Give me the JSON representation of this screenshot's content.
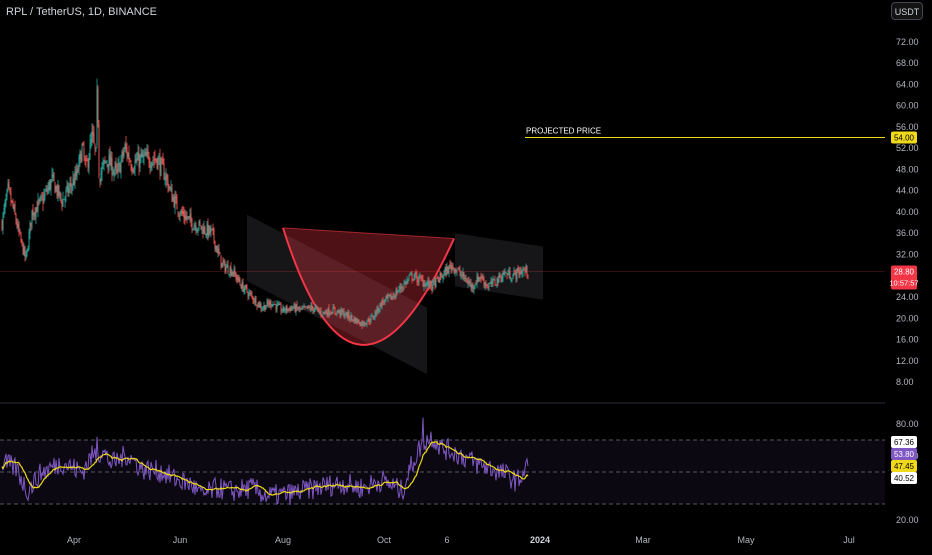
{
  "header": {
    "symbol_title": "RPL / TetherUS, 1D, BINANCE",
    "currency_button": "USDT"
  },
  "colors": {
    "bull": "#26a69a",
    "bear": "#ef5350",
    "pattern": "#f23645",
    "channel": "#787b86",
    "rsi_line": "#7e57c2",
    "rsi_ma": "#f0d91a",
    "projection": "#f0d91a",
    "price_badge": "#f23645"
  },
  "annotations": {
    "projected_label": "PROJECTED PRICE",
    "projected_price": 54,
    "projected_badge": "54.00",
    "last_price_badge": "28.80",
    "countdown_badge": "10:57:57"
  },
  "chart_data": {
    "type": "candlestick",
    "price_axis": {
      "ylim": [
        5,
        78
      ],
      "ticks": [
        "72.00",
        "68.00",
        "64.00",
        "60.00",
        "56.00",
        "52.00",
        "48.00",
        "44.00",
        "40.00",
        "36.00",
        "32.00",
        "24.00",
        "20.00",
        "16.00",
        "12.00",
        "8.00"
      ],
      "tick_values": [
        72,
        68,
        64,
        60,
        56,
        52,
        48,
        44,
        40,
        36,
        32,
        24,
        20,
        16,
        12,
        8
      ]
    },
    "time_axis": {
      "labels": [
        "Apr",
        "Jun",
        "Aug",
        "Oct",
        "6",
        "2024",
        "Mar",
        "May",
        "Jul"
      ]
    },
    "price_keypoints": [
      {
        "i": 0,
        "v": 38
      },
      {
        "i": 6,
        "v": 44
      },
      {
        "i": 12,
        "v": 40
      },
      {
        "i": 18,
        "v": 35
      },
      {
        "i": 24,
        "v": 31
      },
      {
        "i": 30,
        "v": 40
      },
      {
        "i": 40,
        "v": 42
      },
      {
        "i": 50,
        "v": 46
      },
      {
        "i": 60,
        "v": 42
      },
      {
        "i": 75,
        "v": 47
      },
      {
        "i": 80,
        "v": 52
      },
      {
        "i": 84,
        "v": 48
      },
      {
        "i": 90,
        "v": 54
      },
      {
        "i": 98,
        "v": 47
      },
      {
        "i": 105,
        "v": 50
      },
      {
        "i": 115,
        "v": 47
      },
      {
        "i": 123,
        "v": 52
      },
      {
        "i": 130,
        "v": 49
      },
      {
        "i": 140,
        "v": 50
      },
      {
        "i": 155,
        "v": 50
      },
      {
        "i": 163,
        "v": 47
      },
      {
        "i": 170,
        "v": 43
      },
      {
        "i": 178,
        "v": 40
      },
      {
        "i": 190,
        "v": 38
      },
      {
        "i": 200,
        "v": 37
      },
      {
        "i": 210,
        "v": 36
      },
      {
        "i": 220,
        "v": 30
      },
      {
        "i": 230,
        "v": 29
      },
      {
        "i": 240,
        "v": 26
      },
      {
        "i": 250,
        "v": 24
      },
      {
        "i": 260,
        "v": 22
      },
      {
        "i": 270,
        "v": 23
      },
      {
        "i": 280,
        "v": 21.5
      },
      {
        "i": 290,
        "v": 22
      },
      {
        "i": 300,
        "v": 21.5
      },
      {
        "i": 310,
        "v": 22
      },
      {
        "i": 320,
        "v": 21
      },
      {
        "i": 330,
        "v": 21.5
      },
      {
        "i": 340,
        "v": 21
      },
      {
        "i": 350,
        "v": 20
      },
      {
        "i": 360,
        "v": 19
      },
      {
        "i": 370,
        "v": 20
      },
      {
        "i": 380,
        "v": 23
      },
      {
        "i": 390,
        "v": 24
      },
      {
        "i": 400,
        "v": 26
      },
      {
        "i": 410,
        "v": 28
      },
      {
        "i": 420,
        "v": 27
      },
      {
        "i": 430,
        "v": 26
      },
      {
        "i": 440,
        "v": 28
      },
      {
        "i": 450,
        "v": 30
      },
      {
        "i": 460,
        "v": 28
      },
      {
        "i": 470,
        "v": 26
      },
      {
        "i": 478,
        "v": 28
      },
      {
        "i": 486,
        "v": 26
      },
      {
        "i": 494,
        "v": 27
      },
      {
        "i": 502,
        "v": 28.5
      },
      {
        "i": 510,
        "v": 28
      },
      {
        "i": 520,
        "v": 29
      },
      {
        "i": 526,
        "v": 28.8
      }
    ],
    "rsi": {
      "ylim": [
        15,
        90
      ],
      "ticks": [
        "80.00",
        "60.00",
        "20.00"
      ],
      "tick_values": [
        80,
        60,
        20
      ],
      "band_upper": 70,
      "band_mid": 50,
      "band_lower": 30,
      "badges": [
        {
          "text": "67.36",
          "value": 67.36,
          "bg": "#ffffff",
          "fg": "#000000"
        },
        {
          "text": "53.80",
          "value": 53.8,
          "bg": "#7e57c2",
          "fg": "#ffffff"
        },
        {
          "text": "47.45",
          "value": 47.45,
          "bg": "#f0d91a",
          "fg": "#000000"
        },
        {
          "text": "40.52",
          "value": 40.52,
          "bg": "#ffffff",
          "fg": "#000000"
        }
      ],
      "keypoints": [
        {
          "i": 0,
          "v": 56
        },
        {
          "i": 15,
          "v": 52
        },
        {
          "i": 25,
          "v": 38
        },
        {
          "i": 40,
          "v": 50
        },
        {
          "i": 60,
          "v": 56
        },
        {
          "i": 80,
          "v": 50
        },
        {
          "i": 90,
          "v": 60
        },
        {
          "i": 100,
          "v": 63
        },
        {
          "i": 110,
          "v": 55
        },
        {
          "i": 125,
          "v": 61
        },
        {
          "i": 140,
          "v": 52
        },
        {
          "i": 160,
          "v": 50
        },
        {
          "i": 175,
          "v": 45
        },
        {
          "i": 190,
          "v": 42
        },
        {
          "i": 200,
          "v": 35
        },
        {
          "i": 215,
          "v": 40
        },
        {
          "i": 230,
          "v": 38
        },
        {
          "i": 250,
          "v": 40
        },
        {
          "i": 265,
          "v": 35
        },
        {
          "i": 285,
          "v": 36
        },
        {
          "i": 300,
          "v": 38
        },
        {
          "i": 320,
          "v": 41
        },
        {
          "i": 340,
          "v": 43
        },
        {
          "i": 360,
          "v": 40
        },
        {
          "i": 380,
          "v": 45
        },
        {
          "i": 400,
          "v": 38
        },
        {
          "i": 410,
          "v": 55
        },
        {
          "i": 420,
          "v": 68
        },
        {
          "i": 430,
          "v": 72
        },
        {
          "i": 440,
          "v": 65
        },
        {
          "i": 450,
          "v": 63
        },
        {
          "i": 460,
          "v": 60
        },
        {
          "i": 475,
          "v": 55
        },
        {
          "i": 490,
          "v": 52
        },
        {
          "i": 505,
          "v": 48
        },
        {
          "i": 515,
          "v": 44
        },
        {
          "i": 526,
          "v": 53.8
        }
      ]
    }
  }
}
